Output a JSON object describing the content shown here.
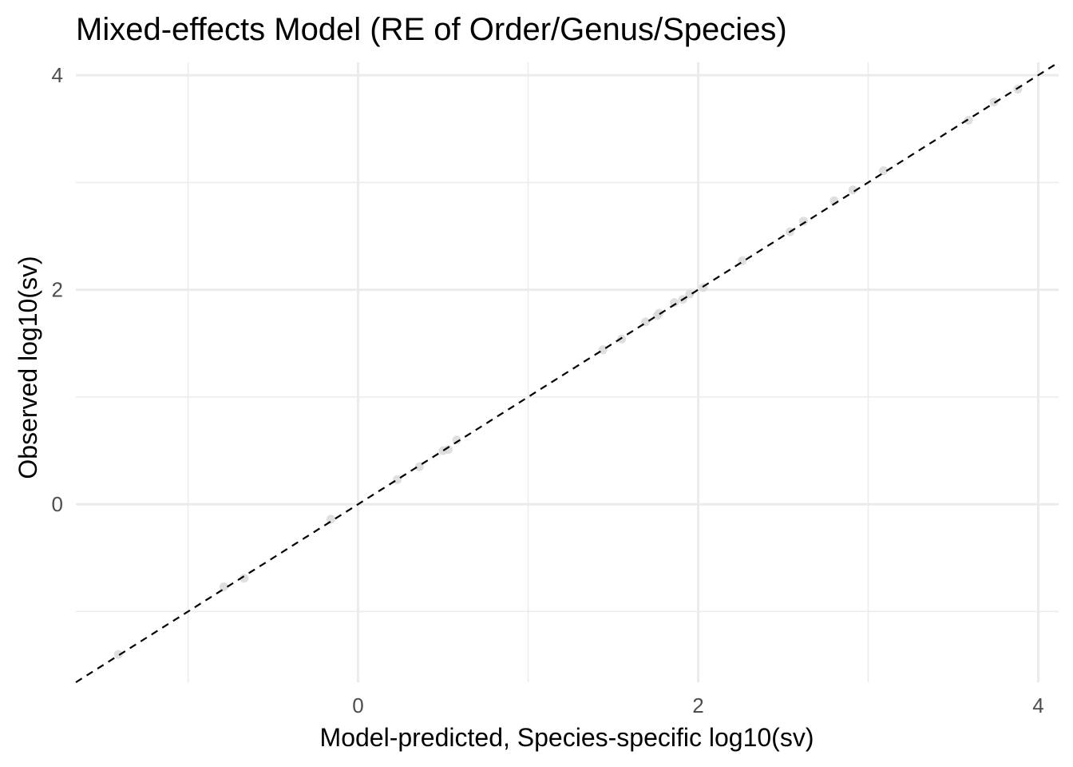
{
  "chart_data": {
    "type": "scatter",
    "title": "Mixed-effects Model (RE of Order/Genus/Species)",
    "xlabel": "Model-predicted, Species-specific log10(sv)",
    "ylabel": "Observed log10(sv)",
    "xlim": [
      -1.66,
      4.12
    ],
    "ylim": [
      -1.66,
      4.12
    ],
    "x_major_ticks": [
      0,
      2,
      4
    ],
    "x_minor_ticks": [
      -1,
      1,
      3
    ],
    "y_major_ticks": [
      0,
      2,
      4
    ],
    "y_minor_ticks": [
      -1,
      1,
      3
    ],
    "x_tick_labels": [
      "0",
      "2",
      "4"
    ],
    "y_tick_labels": [
      "0",
      "2",
      "4"
    ],
    "grid": true,
    "reference_line": {
      "slope": 1,
      "intercept": 0,
      "style": "dashed",
      "color": "#000000"
    },
    "point_color": "#d9d9d9",
    "points": [
      {
        "x": -1.41,
        "y": -1.4
      },
      {
        "x": -0.79,
        "y": -0.77
      },
      {
        "x": -0.67,
        "y": -0.69
      },
      {
        "x": -0.16,
        "y": -0.14
      },
      {
        "x": 0.23,
        "y": 0.23
      },
      {
        "x": 0.36,
        "y": 0.35
      },
      {
        "x": 0.5,
        "y": 0.5
      },
      {
        "x": 0.53,
        "y": 0.51
      },
      {
        "x": 0.58,
        "y": 0.6
      },
      {
        "x": 1.44,
        "y": 1.44
      },
      {
        "x": 1.55,
        "y": 1.54
      },
      {
        "x": 1.69,
        "y": 1.7
      },
      {
        "x": 1.76,
        "y": 1.76
      },
      {
        "x": 1.77,
        "y": 1.78
      },
      {
        "x": 1.86,
        "y": 1.88
      },
      {
        "x": 1.91,
        "y": 1.91
      },
      {
        "x": 1.95,
        "y": 1.96
      },
      {
        "x": 2.03,
        "y": 2.02
      },
      {
        "x": 2.26,
        "y": 2.27
      },
      {
        "x": 2.54,
        "y": 2.54
      },
      {
        "x": 2.62,
        "y": 2.64
      },
      {
        "x": 2.8,
        "y": 2.83
      },
      {
        "x": 2.91,
        "y": 2.93
      },
      {
        "x": 3.09,
        "y": 3.11
      },
      {
        "x": 3.59,
        "y": 3.58
      },
      {
        "x": 3.74,
        "y": 3.75
      },
      {
        "x": 3.88,
        "y": 3.87
      }
    ]
  }
}
